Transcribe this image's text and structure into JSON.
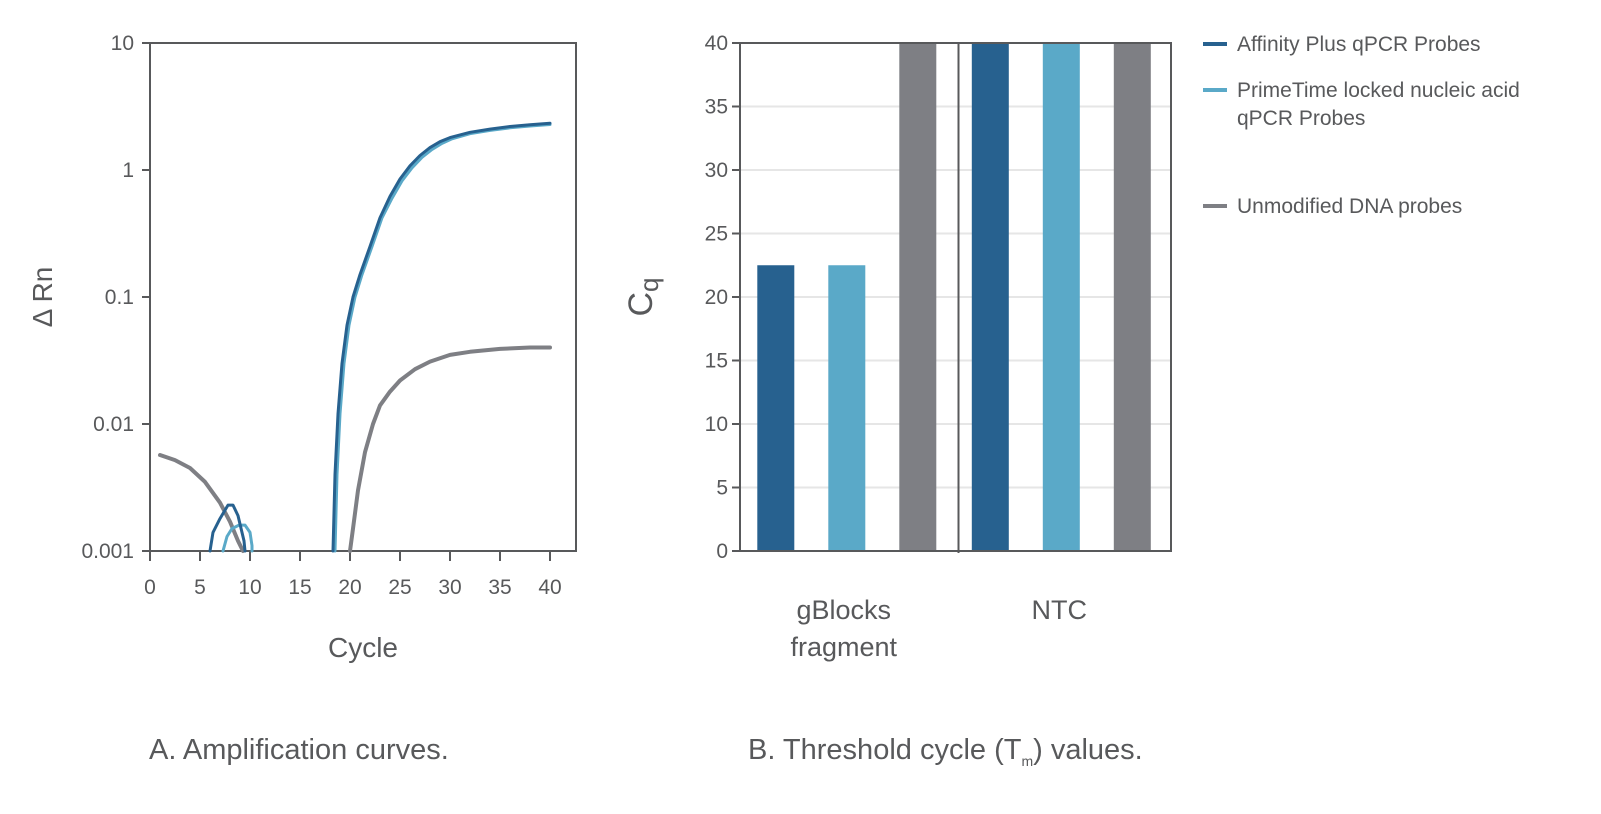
{
  "colors": {
    "affinity": "#27618f",
    "primetime": "#5aa9c8",
    "unmodified": "#7e7f84",
    "axis": "#58595b",
    "grid": "#e6e6e6"
  },
  "legend": [
    {
      "key": "affinity",
      "lines": [
        "Affinity Plus qPCR Probes"
      ]
    },
    {
      "key": "primetime",
      "lines": [
        "PrimeTime locked nucleic acid",
        "qPCR Probes"
      ]
    },
    {
      "key": "unmodified",
      "lines": [
        "Unmodified DNA probes"
      ]
    }
  ],
  "captions": {
    "a": "A. Amplification curves.",
    "b_prefix": "B. Threshold cycle (T",
    "b_sub": "m",
    "b_suffix": ") values."
  },
  "chart_data": [
    {
      "id": "A",
      "type": "line",
      "title": "Amplification curves",
      "xlabel": "Cycle",
      "ylabel": "Δ Rn",
      "yscale": "log",
      "xlim": [
        0,
        42.6
      ],
      "ylim": [
        0.001,
        10
      ],
      "xticks": [
        0,
        5,
        10,
        15,
        20,
        25,
        30,
        35,
        40
      ],
      "yticks": [
        0.001,
        0.01,
        0.1,
        1,
        10
      ],
      "ytick_labels": [
        "0.001",
        "0.01",
        "0.1",
        "1",
        "10"
      ],
      "grid": false,
      "series": [
        {
          "name": "Affinity Plus qPCR Probes",
          "key": "affinity",
          "segments": [
            [
              [
                6.0,
                0.001
              ],
              [
                6.3,
                0.0014
              ],
              [
                7.0,
                0.0018
              ],
              [
                7.8,
                0.0023
              ],
              [
                8.3,
                0.0023
              ],
              [
                8.8,
                0.0019
              ],
              [
                9.4,
                0.0012
              ],
              [
                9.5,
                0.001
              ]
            ],
            [
              [
                18.3,
                0.001
              ],
              [
                18.5,
                0.004
              ],
              [
                18.8,
                0.012
              ],
              [
                19.2,
                0.03
              ],
              [
                19.7,
                0.06
              ],
              [
                20.3,
                0.1
              ],
              [
                21.0,
                0.15
              ],
              [
                22.0,
                0.25
              ],
              [
                23.0,
                0.42
              ],
              [
                24.0,
                0.62
              ],
              [
                25.0,
                0.85
              ],
              [
                26.0,
                1.08
              ],
              [
                27.0,
                1.3
              ],
              [
                28.0,
                1.5
              ],
              [
                29.0,
                1.67
              ],
              [
                30.0,
                1.8
              ],
              [
                32.0,
                1.98
              ],
              [
                34.0,
                2.1
              ],
              [
                36.0,
                2.2
              ],
              [
                38.0,
                2.27
              ],
              [
                40.0,
                2.33
              ]
            ]
          ]
        },
        {
          "name": "PrimeTime locked nucleic acid qPCR Probes",
          "key": "primetime",
          "segments": [
            [
              [
                7.3,
                0.001
              ],
              [
                7.7,
                0.0013
              ],
              [
                8.2,
                0.0015
              ],
              [
                8.9,
                0.0016
              ],
              [
                9.5,
                0.0016
              ],
              [
                10.0,
                0.0014
              ],
              [
                10.2,
                0.0011
              ],
              [
                10.2,
                0.001
              ]
            ],
            [
              [
                18.5,
                0.001
              ],
              [
                18.7,
                0.004
              ],
              [
                19.0,
                0.012
              ],
              [
                19.4,
                0.03
              ],
              [
                19.9,
                0.06
              ],
              [
                20.5,
                0.1
              ],
              [
                21.2,
                0.15
              ],
              [
                22.2,
                0.25
              ],
              [
                23.2,
                0.42
              ],
              [
                24.2,
                0.6
              ],
              [
                25.2,
                0.82
              ],
              [
                26.2,
                1.04
              ],
              [
                27.2,
                1.26
              ],
              [
                28.2,
                1.45
              ],
              [
                29.2,
                1.62
              ],
              [
                30.2,
                1.76
              ],
              [
                32.0,
                1.93
              ],
              [
                34.0,
                2.05
              ],
              [
                36.0,
                2.15
              ],
              [
                38.0,
                2.22
              ],
              [
                40.0,
                2.28
              ]
            ]
          ]
        },
        {
          "name": "Unmodified DNA probes",
          "key": "unmodified",
          "segments": [
            [
              [
                1.0,
                0.0057
              ],
              [
                2.5,
                0.0052
              ],
              [
                4.0,
                0.0045
              ],
              [
                5.5,
                0.0035
              ],
              [
                7.0,
                0.0024
              ],
              [
                8.0,
                0.0017
              ],
              [
                8.8,
                0.0012
              ],
              [
                9.3,
                0.001
              ]
            ],
            [
              [
                20.0,
                0.001
              ],
              [
                20.3,
                0.0015
              ],
              [
                20.8,
                0.003
              ],
              [
                21.5,
                0.006
              ],
              [
                22.3,
                0.01
              ],
              [
                23.0,
                0.014
              ],
              [
                24.0,
                0.018
              ],
              [
                25.0,
                0.022
              ],
              [
                26.5,
                0.027
              ],
              [
                28.0,
                0.031
              ],
              [
                30.0,
                0.035
              ],
              [
                32.0,
                0.037
              ],
              [
                35.0,
                0.039
              ],
              [
                38.0,
                0.04
              ],
              [
                40.0,
                0.04
              ]
            ]
          ]
        }
      ]
    },
    {
      "id": "B",
      "type": "bar",
      "title": "Threshold cycle values",
      "xlabel": "",
      "ylabel": "Cq",
      "ylim": [
        0,
        40
      ],
      "yticks": [
        0,
        5,
        10,
        15,
        20,
        25,
        30,
        35,
        40
      ],
      "grid": true,
      "categories": [
        [
          "gBlocks",
          "fragment"
        ],
        [
          "NTC"
        ]
      ],
      "series": [
        {
          "name": "Affinity Plus qPCR Probes",
          "key": "affinity",
          "values": [
            22.5,
            40
          ]
        },
        {
          "name": "PrimeTime locked nucleic acid qPCR Probes",
          "key": "primetime",
          "values": [
            22.5,
            40
          ]
        },
        {
          "name": "Unmodified DNA probes",
          "key": "unmodified",
          "values": [
            40,
            40
          ]
        }
      ]
    }
  ]
}
